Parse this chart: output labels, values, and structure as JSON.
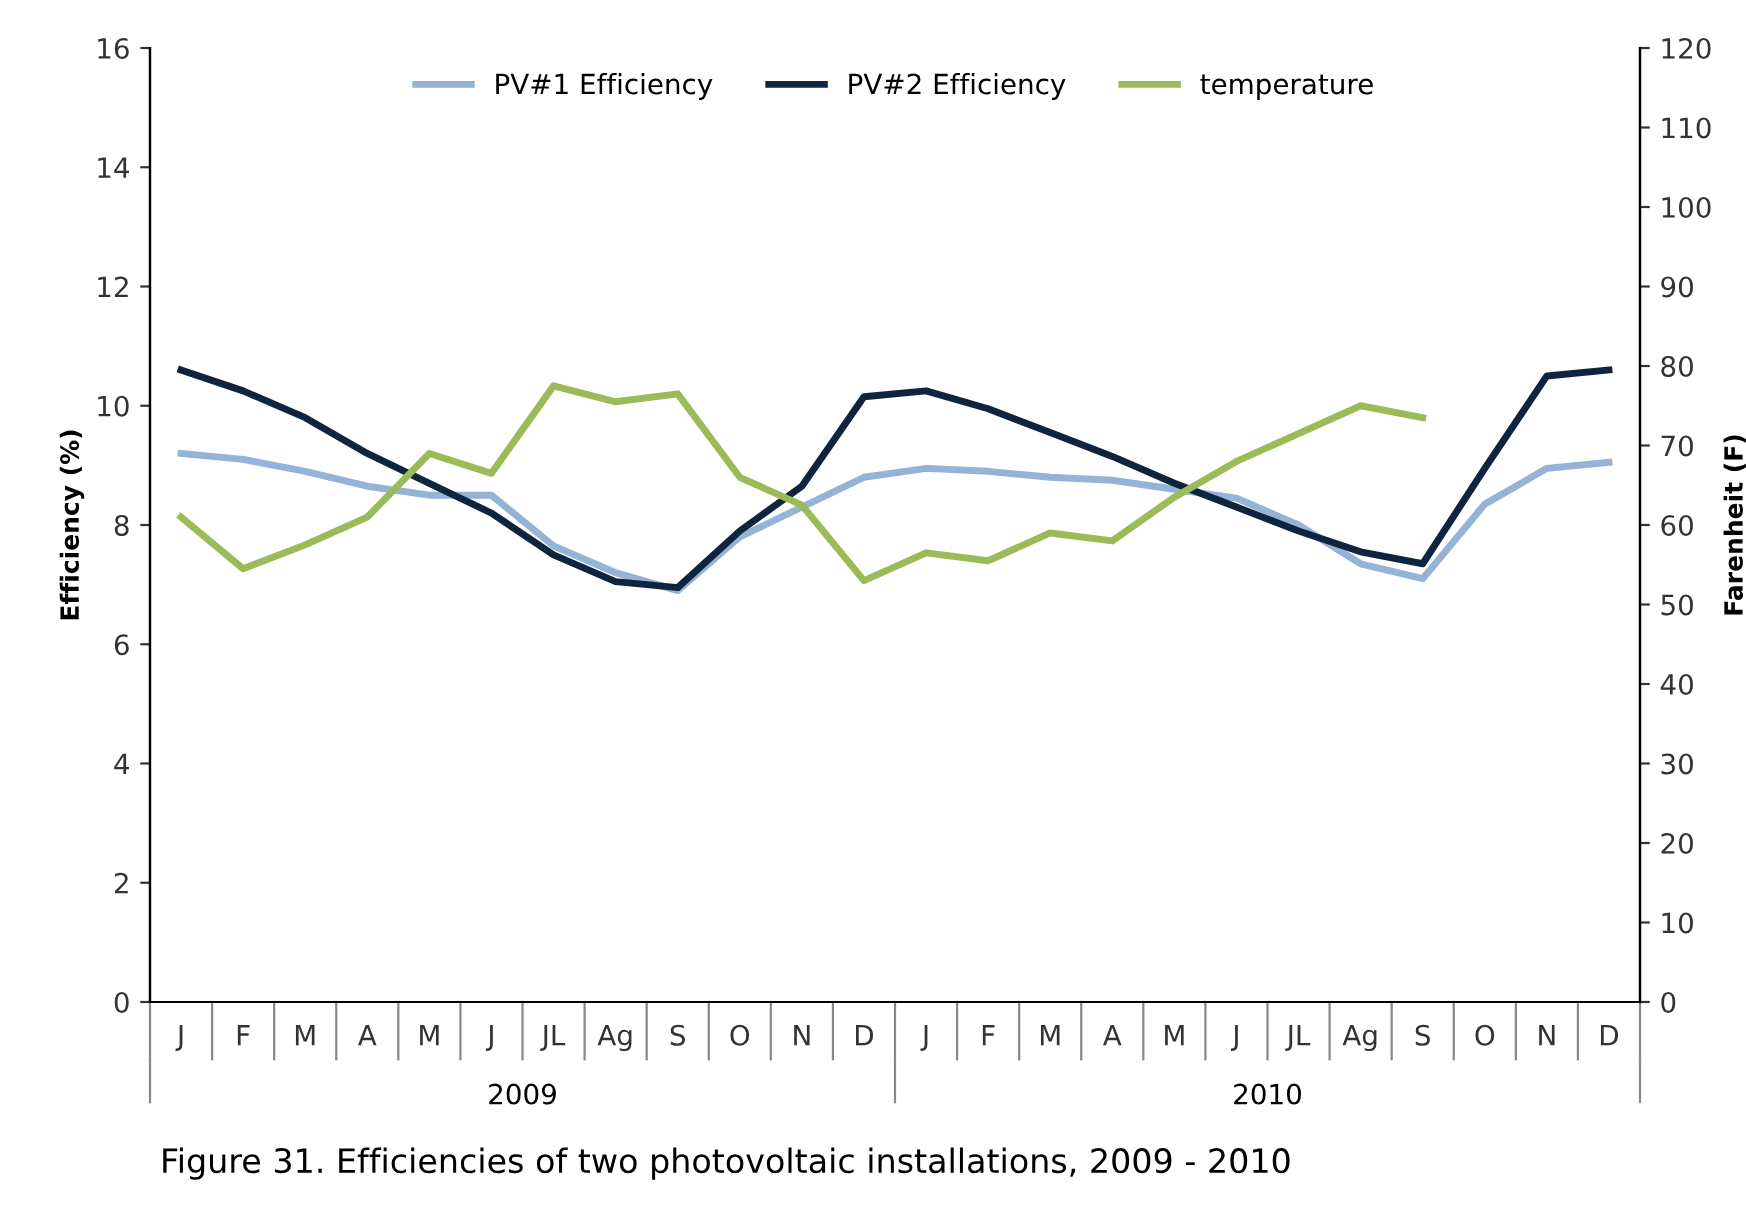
{
  "chart_data": {
    "type": "line",
    "ylabel": "Efficiency (%)",
    "y2label": "Farenheit (F)",
    "categories": [
      "J",
      "F",
      "M",
      "A",
      "M",
      "J",
      "JL",
      "Ag",
      "S",
      "O",
      "N",
      "D",
      "J",
      "F",
      "M",
      "A",
      "M",
      "J",
      "JL",
      "Ag",
      "S",
      "O",
      "N",
      "D"
    ],
    "series": [
      {
        "name": "PV#1 Efficiency",
        "color": "#95b3d7",
        "values": [
          9.2,
          9.1,
          8.9,
          8.65,
          8.5,
          8.5,
          7.65,
          7.2,
          6.9,
          7.8,
          8.3,
          8.8,
          8.95,
          8.9,
          8.8,
          8.75,
          8.6,
          8.45,
          8.0,
          7.35,
          7.1,
          8.35,
          8.95,
          9.05
        ]
      },
      {
        "name": "PV#2 Efficiency",
        "color": "#0f243e",
        "values": [
          10.6,
          10.25,
          9.8,
          9.2,
          8.7,
          8.2,
          7.5,
          7.05,
          6.95,
          7.9,
          8.65,
          10.15,
          10.25,
          9.95,
          9.55,
          9.15,
          8.7,
          8.3,
          7.9,
          7.55,
          7.35,
          8.95,
          10.5,
          10.6
        ]
      },
      {
        "name": "temperature",
        "color": "#9bbb59",
        "axis": "y2",
        "values": [
          61,
          54.5,
          57.5,
          61,
          69,
          66.5,
          77.5,
          75.5,
          76.5,
          66,
          62.5,
          53,
          56.5,
          55.5,
          59,
          58,
          63.5,
          68,
          71.5,
          75,
          73.5,
          null,
          null,
          null
        ]
      }
    ],
    "ylim": [
      0,
      16
    ],
    "yticks": [
      0,
      2,
      4,
      6,
      8,
      10,
      12,
      14,
      16
    ],
    "y2lim": [
      0,
      120
    ],
    "y2ticks": [
      0,
      10,
      20,
      30,
      40,
      50,
      60,
      70,
      80,
      90,
      100,
      110,
      120
    ],
    "legend": "top",
    "grid": false,
    "marker": "none",
    "line_style": "solid",
    "annotations": [
      "2009",
      "2010",
      "Figure 31. Efficiencies of two photovoltaic installations, 2009 - 2010"
    ]
  }
}
